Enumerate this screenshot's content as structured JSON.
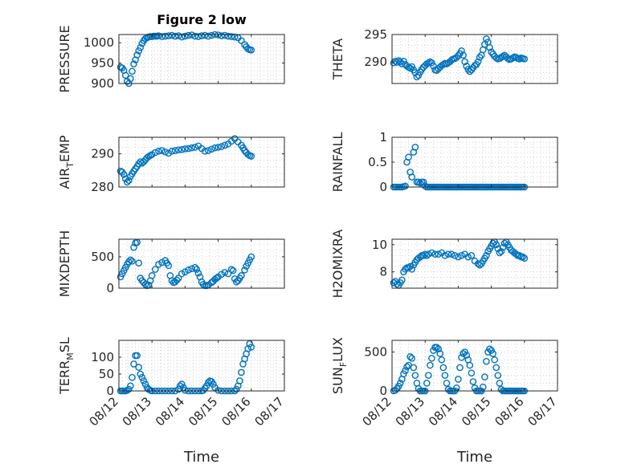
{
  "figure": {
    "title": "Figure 2 low"
  },
  "colors": {
    "marker": "#0072BD",
    "axis": "#262626",
    "grid": "#c8c8c8"
  },
  "chart_data": [
    {
      "id": "pressure",
      "type": "scatter",
      "title": "Figure 2 low",
      "ylabel": "PRESSURE",
      "xlim": [
        "08/12",
        "08/17"
      ],
      "ylim": [
        900,
        1020
      ],
      "yticks": [
        900,
        950,
        1000
      ],
      "xticks": [
        "08/12",
        "08/13",
        "08/14",
        "08/15",
        "08/16",
        "08/17"
      ],
      "x": [
        0.05,
        0.1,
        0.15,
        0.2,
        0.25,
        0.3,
        0.35,
        0.4,
        0.45,
        0.5,
        0.55,
        0.6,
        0.65,
        0.7,
        0.75,
        0.8,
        0.85,
        0.9,
        0.95,
        1.0,
        1.05,
        1.1,
        1.15,
        1.2,
        1.3,
        1.4,
        1.5,
        1.6,
        1.7,
        1.8,
        1.9,
        2.0,
        2.1,
        2.2,
        2.3,
        2.4,
        2.5,
        2.6,
        2.7,
        2.8,
        2.9,
        3.0,
        3.1,
        3.2,
        3.3,
        3.4,
        3.5,
        3.6,
        3.7,
        3.8,
        3.85,
        3.9,
        3.95,
        4.0
      ],
      "y": [
        940,
        938,
        932,
        920,
        905,
        900,
        912,
        930,
        948,
        958,
        970,
        980,
        988,
        998,
        1005,
        1010,
        1012,
        1014,
        1015,
        1015,
        1016,
        1016,
        1016,
        1017,
        1015,
        1016,
        1017,
        1018,
        1016,
        1017,
        1014,
        1016,
        1018,
        1019,
        1016,
        1015,
        1017,
        1018,
        1016,
        1018,
        1020,
        1019,
        1017,
        1018,
        1016,
        1015,
        1014,
        1012,
        1005,
        995,
        990,
        985,
        983,
        982
      ],
      "ylim_upper": 1020
    },
    {
      "id": "theta",
      "type": "scatter",
      "ylabel": "THETA",
      "xlim": [
        "08/12",
        "08/17"
      ],
      "ylim": [
        286,
        295
      ],
      "yticks": [
        290,
        295
      ],
      "xticks": [
        "08/12",
        "08/13",
        "08/14",
        "08/15",
        "08/16",
        "08/17"
      ],
      "x": [
        0.05,
        0.1,
        0.15,
        0.2,
        0.25,
        0.3,
        0.35,
        0.4,
        0.45,
        0.5,
        0.55,
        0.6,
        0.65,
        0.7,
        0.75,
        0.8,
        0.85,
        0.9,
        0.95,
        1.0,
        1.05,
        1.1,
        1.15,
        1.2,
        1.25,
        1.3,
        1.35,
        1.4,
        1.45,
        1.5,
        1.55,
        1.6,
        1.65,
        1.7,
        1.75,
        1.8,
        1.85,
        1.9,
        1.95,
        2.0,
        2.05,
        2.1,
        2.15,
        2.2,
        2.25,
        2.3,
        2.35,
        2.4,
        2.45,
        2.5,
        2.55,
        2.6,
        2.65,
        2.7,
        2.75,
        2.8,
        2.85,
        2.9,
        2.95,
        3.0,
        3.05,
        3.1,
        3.15,
        3.2,
        3.25,
        3.3,
        3.35,
        3.4,
        3.45,
        3.5,
        3.55,
        3.6,
        3.65,
        3.7,
        3.75,
        3.8,
        3.85,
        3.9,
        3.95,
        4.0
      ],
      "y": [
        289.8,
        290.1,
        289.9,
        290.2,
        290.0,
        289.6,
        290.1,
        289.5,
        289.2,
        289.0,
        288.8,
        289.1,
        288.5,
        288.0,
        287.2,
        287.5,
        288.1,
        288.6,
        289.0,
        289.3,
        289.6,
        289.8,
        290.0,
        289.8,
        289.2,
        288.5,
        288.4,
        288.7,
        289.0,
        289.3,
        289.5,
        289.7,
        289.6,
        289.8,
        290.0,
        290.3,
        290.5,
        290.6,
        290.8,
        291.1,
        291.5,
        292.0,
        291.2,
        290.0,
        289.2,
        288.6,
        288.2,
        288.5,
        288.9,
        289.3,
        289.5,
        290.0,
        290.8,
        291.2,
        292.2,
        293.2,
        294.2,
        293.6,
        292.6,
        291.8,
        291.4,
        291.0,
        290.7,
        290.5,
        290.6,
        290.8,
        291.0,
        291.2,
        290.9,
        290.6,
        290.4,
        290.5,
        290.7,
        290.9,
        290.8,
        290.6,
        290.5,
        290.7,
        290.6,
        290.5
      ]
    },
    {
      "id": "air_temp",
      "type": "scatter",
      "ylabel": "AIR_TEMP",
      "ylabel_parts": [
        "AIR",
        "T",
        "EMP"
      ],
      "xlim": [
        "08/12",
        "08/17"
      ],
      "ylim": [
        280,
        295
      ],
      "yticks": [
        280,
        290
      ],
      "xticks": [
        "08/12",
        "08/13",
        "08/14",
        "08/15",
        "08/16",
        "08/17"
      ],
      "x": [
        0.05,
        0.1,
        0.15,
        0.2,
        0.25,
        0.3,
        0.35,
        0.4,
        0.45,
        0.5,
        0.55,
        0.6,
        0.65,
        0.7,
        0.75,
        0.8,
        0.85,
        0.9,
        0.95,
        1.0,
        1.1,
        1.2,
        1.3,
        1.4,
        1.5,
        1.6,
        1.7,
        1.8,
        1.9,
        2.0,
        2.1,
        2.2,
        2.3,
        2.4,
        2.5,
        2.6,
        2.7,
        2.8,
        2.9,
        3.0,
        3.1,
        3.2,
        3.3,
        3.4,
        3.5,
        3.6,
        3.7,
        3.75,
        3.8,
        3.85,
        3.9,
        3.95,
        4.0
      ],
      "y": [
        284.8,
        284.5,
        283.8,
        282.5,
        281.5,
        282.0,
        283.2,
        284.0,
        284.8,
        285.5,
        286.2,
        287.0,
        287.6,
        287.2,
        287.6,
        288.2,
        288.8,
        289.2,
        289.5,
        289.8,
        290.4,
        290.8,
        291.0,
        290.6,
        290.2,
        290.8,
        291.0,
        291.2,
        291.3,
        291.5,
        291.6,
        291.8,
        292.0,
        292.4,
        291.6,
        290.8,
        291.0,
        291.4,
        291.8,
        292.0,
        292.2,
        292.6,
        293.0,
        293.8,
        294.6,
        293.6,
        292.6,
        291.8,
        291.0,
        290.4,
        289.8,
        289.5,
        289.3
      ]
    },
    {
      "id": "rainfall",
      "type": "scatter",
      "ylabel": "RAINFALL",
      "xlim": [
        "08/12",
        "08/17"
      ],
      "ylim": [
        0,
        1
      ],
      "yticks": [
        0,
        0.5,
        1
      ],
      "ytick_labels": [
        "0",
        "0.5",
        "1"
      ],
      "xticks": [
        "08/12",
        "08/13",
        "08/14",
        "08/15",
        "08/16",
        "08/17"
      ],
      "x": [
        0.05,
        0.1,
        0.15,
        0.2,
        0.25,
        0.3,
        0.35,
        0.4,
        0.45,
        0.5,
        0.55,
        0.6,
        0.65,
        0.7,
        0.75,
        0.8,
        0.85,
        0.9,
        0.95,
        1.0,
        1.05,
        1.1,
        1.15,
        1.2,
        1.25,
        1.3,
        1.35,
        1.4,
        1.45,
        1.5,
        1.55,
        1.6,
        1.65,
        1.7,
        1.75,
        1.8,
        1.85,
        1.9,
        1.95,
        2.0,
        2.05,
        2.1,
        2.15,
        2.2,
        2.25,
        2.3,
        2.35,
        2.4,
        2.45,
        2.5,
        2.55,
        2.6,
        2.65,
        2.7,
        2.75,
        2.8,
        2.85,
        2.9,
        2.95,
        3.0,
        3.05,
        3.1,
        3.15,
        3.2,
        3.25,
        3.3,
        3.35,
        3.4,
        3.45,
        3.5,
        3.55,
        3.6,
        3.65,
        3.7,
        3.75,
        3.8,
        3.85,
        3.9,
        3.95,
        4.0
      ],
      "y": [
        0,
        0,
        0,
        0,
        0,
        0,
        0.01,
        0.02,
        0.5,
        0.6,
        0.3,
        0.2,
        0.7,
        0.8,
        0.1,
        0.1,
        0.08,
        0.1,
        0.1,
        0.02,
        0,
        0,
        0,
        0,
        0,
        0,
        0,
        0,
        0,
        0,
        0,
        0,
        0,
        0,
        0,
        0,
        0,
        0,
        0,
        0,
        0,
        0,
        0,
        0,
        0,
        0,
        0,
        0,
        0,
        0,
        0,
        0,
        0,
        0,
        0,
        0,
        0,
        0,
        0,
        0,
        0,
        0,
        0,
        0,
        0,
        0,
        0,
        0,
        0,
        0,
        0,
        0,
        0,
        0,
        0,
        0,
        0,
        0,
        0,
        0
      ]
    },
    {
      "id": "mixdepth",
      "type": "scatter",
      "ylabel": "MIXDEPTH",
      "xlim": [
        "08/12",
        "08/17"
      ],
      "ylim": [
        0,
        780
      ],
      "yticks": [
        0,
        500
      ],
      "xticks": [
        "08/12",
        "08/13",
        "08/14",
        "08/15",
        "08/16",
        "08/17"
      ],
      "x": [
        0.05,
        0.1,
        0.15,
        0.2,
        0.25,
        0.3,
        0.35,
        0.4,
        0.45,
        0.5,
        0.55,
        0.6,
        0.65,
        0.7,
        0.75,
        0.8,
        0.85,
        0.9,
        0.95,
        1.0,
        1.1,
        1.2,
        1.3,
        1.4,
        1.45,
        1.5,
        1.55,
        1.6,
        1.65,
        1.7,
        1.75,
        1.8,
        1.9,
        2.0,
        2.1,
        2.2,
        2.3,
        2.35,
        2.4,
        2.45,
        2.5,
        2.55,
        2.6,
        2.65,
        2.7,
        2.8,
        2.85,
        2.9,
        2.95,
        3.0,
        3.1,
        3.2,
        3.3,
        3.4,
        3.45,
        3.5,
        3.55,
        3.6,
        3.65,
        3.7,
        3.8,
        3.85,
        3.9,
        3.95,
        4.0
      ],
      "y": [
        180,
        230,
        280,
        330,
        380,
        420,
        450,
        430,
        650,
        720,
        730,
        400,
        160,
        120,
        90,
        60,
        40,
        50,
        120,
        200,
        300,
        380,
        410,
        440,
        400,
        360,
        200,
        120,
        90,
        100,
        130,
        160,
        230,
        260,
        290,
        310,
        330,
        300,
        240,
        180,
        100,
        60,
        40,
        40,
        50,
        90,
        110,
        140,
        160,
        180,
        220,
        250,
        230,
        300,
        280,
        150,
        100,
        120,
        160,
        200,
        290,
        350,
        400,
        450,
        500
      ]
    },
    {
      "id": "h2omixra",
      "type": "scatter",
      "ylabel": "H2OMIXRA",
      "xlim": [
        "08/12",
        "08/17"
      ],
      "ylim": [
        6.8,
        10.4
      ],
      "yticks": [
        8,
        10
      ],
      "xticks": [
        "08/12",
        "08/13",
        "08/14",
        "08/15",
        "08/16",
        "08/17"
      ],
      "x": [
        0.05,
        0.1,
        0.15,
        0.2,
        0.25,
        0.3,
        0.35,
        0.4,
        0.45,
        0.5,
        0.55,
        0.6,
        0.65,
        0.7,
        0.75,
        0.8,
        0.85,
        0.9,
        0.95,
        1.0,
        1.05,
        1.1,
        1.2,
        1.3,
        1.4,
        1.5,
        1.6,
        1.7,
        1.8,
        1.9,
        2.0,
        2.1,
        2.2,
        2.3,
        2.4,
        2.5,
        2.6,
        2.65,
        2.7,
        2.75,
        2.8,
        2.85,
        2.9,
        2.95,
        3.0,
        3.05,
        3.1,
        3.15,
        3.2,
        3.25,
        3.3,
        3.35,
        3.4,
        3.45,
        3.5,
        3.55,
        3.6,
        3.65,
        3.7,
        3.75,
        3.8,
        3.85,
        3.9,
        3.95,
        4.0
      ],
      "y": [
        7.2,
        7.3,
        7.1,
        7.0,
        7.2,
        7.4,
        8.0,
        8.2,
        8.3,
        8.3,
        8.4,
        8.2,
        8.5,
        8.7,
        8.9,
        9.0,
        9.1,
        9.2,
        9.2,
        9.3,
        9.2,
        9.3,
        9.4,
        9.3,
        9.3,
        9.4,
        9.2,
        9.3,
        9.3,
        9.2,
        9.1,
        9.2,
        9.3,
        9.1,
        9.2,
        8.8,
        8.6,
        8.5,
        8.6,
        8.8,
        9.0,
        9.2,
        9.5,
        9.7,
        9.9,
        10.1,
        10.2,
        10.0,
        9.7,
        9.4,
        9.5,
        9.8,
        10.1,
        10.2,
        10.0,
        9.8,
        9.6,
        9.5,
        9.4,
        9.3,
        9.2,
        9.2,
        9.1,
        9.1,
        9.0
      ]
    },
    {
      "id": "terr_msl",
      "type": "scatter",
      "ylabel": "TERR_MSL",
      "ylabel_parts": [
        "TERR",
        "M",
        "SL"
      ],
      "xlim": [
        "08/12",
        "08/17"
      ],
      "ylim": [
        0,
        150
      ],
      "yticks": [
        0,
        50,
        100
      ],
      "xticks": [
        "08/12",
        "08/13",
        "08/14",
        "08/15",
        "08/16",
        "08/17"
      ],
      "xlabel": "Time",
      "x": [
        0.05,
        0.1,
        0.15,
        0.2,
        0.25,
        0.3,
        0.35,
        0.4,
        0.45,
        0.5,
        0.55,
        0.6,
        0.65,
        0.7,
        0.75,
        0.8,
        0.85,
        0.9,
        0.95,
        1.0,
        1.1,
        1.2,
        1.3,
        1.4,
        1.5,
        1.6,
        1.7,
        1.8,
        1.85,
        1.9,
        1.95,
        2.0,
        2.1,
        2.2,
        2.3,
        2.4,
        2.5,
        2.55,
        2.6,
        2.65,
        2.7,
        2.75,
        2.8,
        2.85,
        2.9,
        3.0,
        3.1,
        3.2,
        3.3,
        3.4,
        3.5,
        3.55,
        3.6,
        3.65,
        3.7,
        3.75,
        3.8,
        3.85,
        3.9,
        3.95,
        4.0
      ],
      "y": [
        0,
        0,
        0,
        0,
        2,
        5,
        15,
        40,
        80,
        105,
        105,
        70,
        50,
        40,
        30,
        20,
        10,
        5,
        2,
        0,
        0,
        0,
        0,
        0,
        0,
        0,
        0,
        5,
        15,
        20,
        10,
        2,
        0,
        0,
        0,
        0,
        0,
        2,
        8,
        15,
        25,
        30,
        28,
        20,
        10,
        2,
        0,
        0,
        0,
        0,
        0,
        5,
        15,
        30,
        55,
        80,
        95,
        110,
        125,
        140,
        130
      ]
    },
    {
      "id": "sun_flux",
      "type": "scatter",
      "ylabel": "SUN_FLUX",
      "ylabel_parts": [
        "SUN",
        "F",
        "LUX"
      ],
      "xlim": [
        "08/12",
        "08/17"
      ],
      "ylim": [
        0,
        650
      ],
      "yticks": [
        0,
        500
      ],
      "xticks": [
        "08/12",
        "08/13",
        "08/14",
        "08/15",
        "08/16",
        "08/17"
      ],
      "xlabel": "Time",
      "x": [
        0.05,
        0.1,
        0.15,
        0.2,
        0.25,
        0.3,
        0.35,
        0.4,
        0.45,
        0.5,
        0.55,
        0.6,
        0.65,
        0.7,
        0.75,
        0.8,
        0.85,
        0.9,
        0.95,
        1.0,
        1.05,
        1.1,
        1.15,
        1.2,
        1.25,
        1.3,
        1.35,
        1.4,
        1.45,
        1.5,
        1.55,
        1.6,
        1.65,
        1.7,
        1.75,
        1.8,
        1.85,
        1.9,
        1.95,
        2.0,
        2.05,
        2.1,
        2.15,
        2.2,
        2.25,
        2.3,
        2.35,
        2.4,
        2.45,
        2.5,
        2.55,
        2.6,
        2.65,
        2.7,
        2.75,
        2.8,
        2.85,
        2.9,
        2.95,
        3.0,
        3.05,
        3.1,
        3.15,
        3.2,
        3.25,
        3.3,
        3.35,
        3.4,
        3.45,
        3.5,
        3.55,
        3.6,
        3.65,
        3.7,
        3.75,
        3.8,
        3.85,
        3.9,
        3.95,
        4.0
      ],
      "y": [
        0,
        10,
        30,
        60,
        100,
        150,
        220,
        260,
        310,
        330,
        440,
        420,
        300,
        200,
        100,
        30,
        0,
        0,
        0,
        0,
        100,
        200,
        330,
        420,
        520,
        560,
        560,
        540,
        480,
        400,
        300,
        200,
        100,
        20,
        0,
        0,
        0,
        0,
        40,
        150,
        300,
        430,
        480,
        500,
        460,
        400,
        330,
        230,
        120,
        40,
        0,
        0,
        0,
        0,
        50,
        180,
        380,
        500,
        540,
        520,
        480,
        400,
        300,
        200,
        100,
        20,
        0,
        0,
        0,
        0,
        0,
        0,
        0,
        0,
        0,
        0,
        0,
        0,
        0,
        0
      ]
    }
  ]
}
